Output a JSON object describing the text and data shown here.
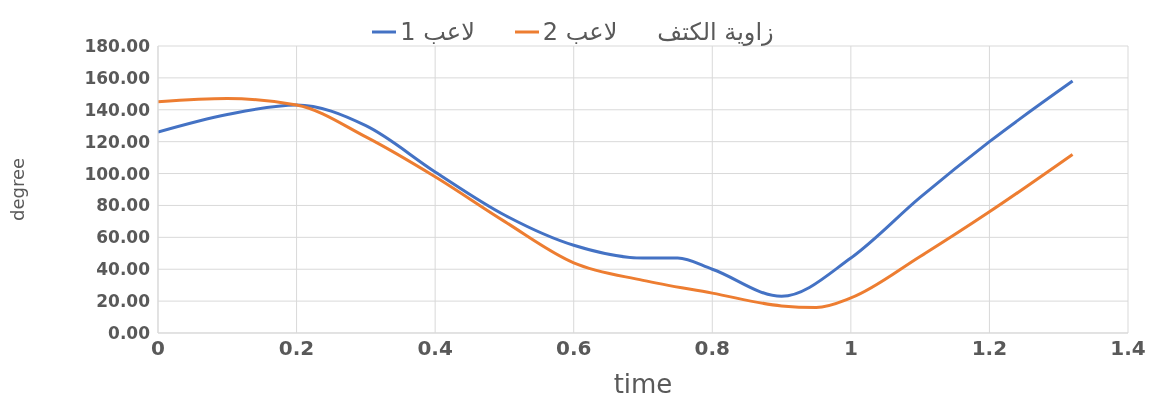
{
  "chart_data": {
    "type": "line",
    "legend_title": "زاوية الكتف",
    "xlabel": "time",
    "ylabel": "degree",
    "xlim": [
      0,
      1.4
    ],
    "xticks": [
      0,
      0.2,
      0.4,
      0.6,
      0.8,
      1,
      1.2,
      1.4
    ],
    "ylim": [
      0,
      180
    ],
    "yticks": [
      {
        "value": 0,
        "label": "0.00"
      },
      {
        "value": 20,
        "label": "20.00"
      },
      {
        "value": 40,
        "label": "40.00"
      },
      {
        "value": 60,
        "label": "60.00"
      },
      {
        "value": 80,
        "label": "80.00"
      },
      {
        "value": 100,
        "label": "100.00"
      },
      {
        "value": 120,
        "label": "120.00"
      },
      {
        "value": 140,
        "label": "140.00"
      },
      {
        "value": 160,
        "label": "160.00"
      },
      {
        "value": 180,
        "label": "180.00"
      }
    ],
    "grid": true,
    "legend": "top",
    "marker": "none",
    "line_style": "solid",
    "series": [
      {
        "name": "لاعب 1",
        "color": "#4472c4",
        "x": [
          0,
          0.1,
          0.2,
          0.3,
          0.4,
          0.5,
          0.6,
          0.7,
          0.75,
          0.8,
          0.9,
          1.0,
          1.1,
          1.2,
          1.32
        ],
        "values": [
          126,
          137,
          143,
          130,
          101,
          74,
          55,
          47,
          47,
          40,
          23,
          47,
          85,
          120,
          158
        ]
      },
      {
        "name": "لاعب 2",
        "color": "#ed7d31",
        "x": [
          0,
          0.1,
          0.2,
          0.3,
          0.4,
          0.5,
          0.6,
          0.7,
          0.8,
          0.9,
          0.95,
          1.0,
          1.1,
          1.2,
          1.32
        ],
        "values": [
          145,
          147,
          143,
          123,
          98,
          70,
          44,
          33,
          25,
          17,
          16,
          22,
          48,
          76,
          112
        ]
      }
    ]
  }
}
